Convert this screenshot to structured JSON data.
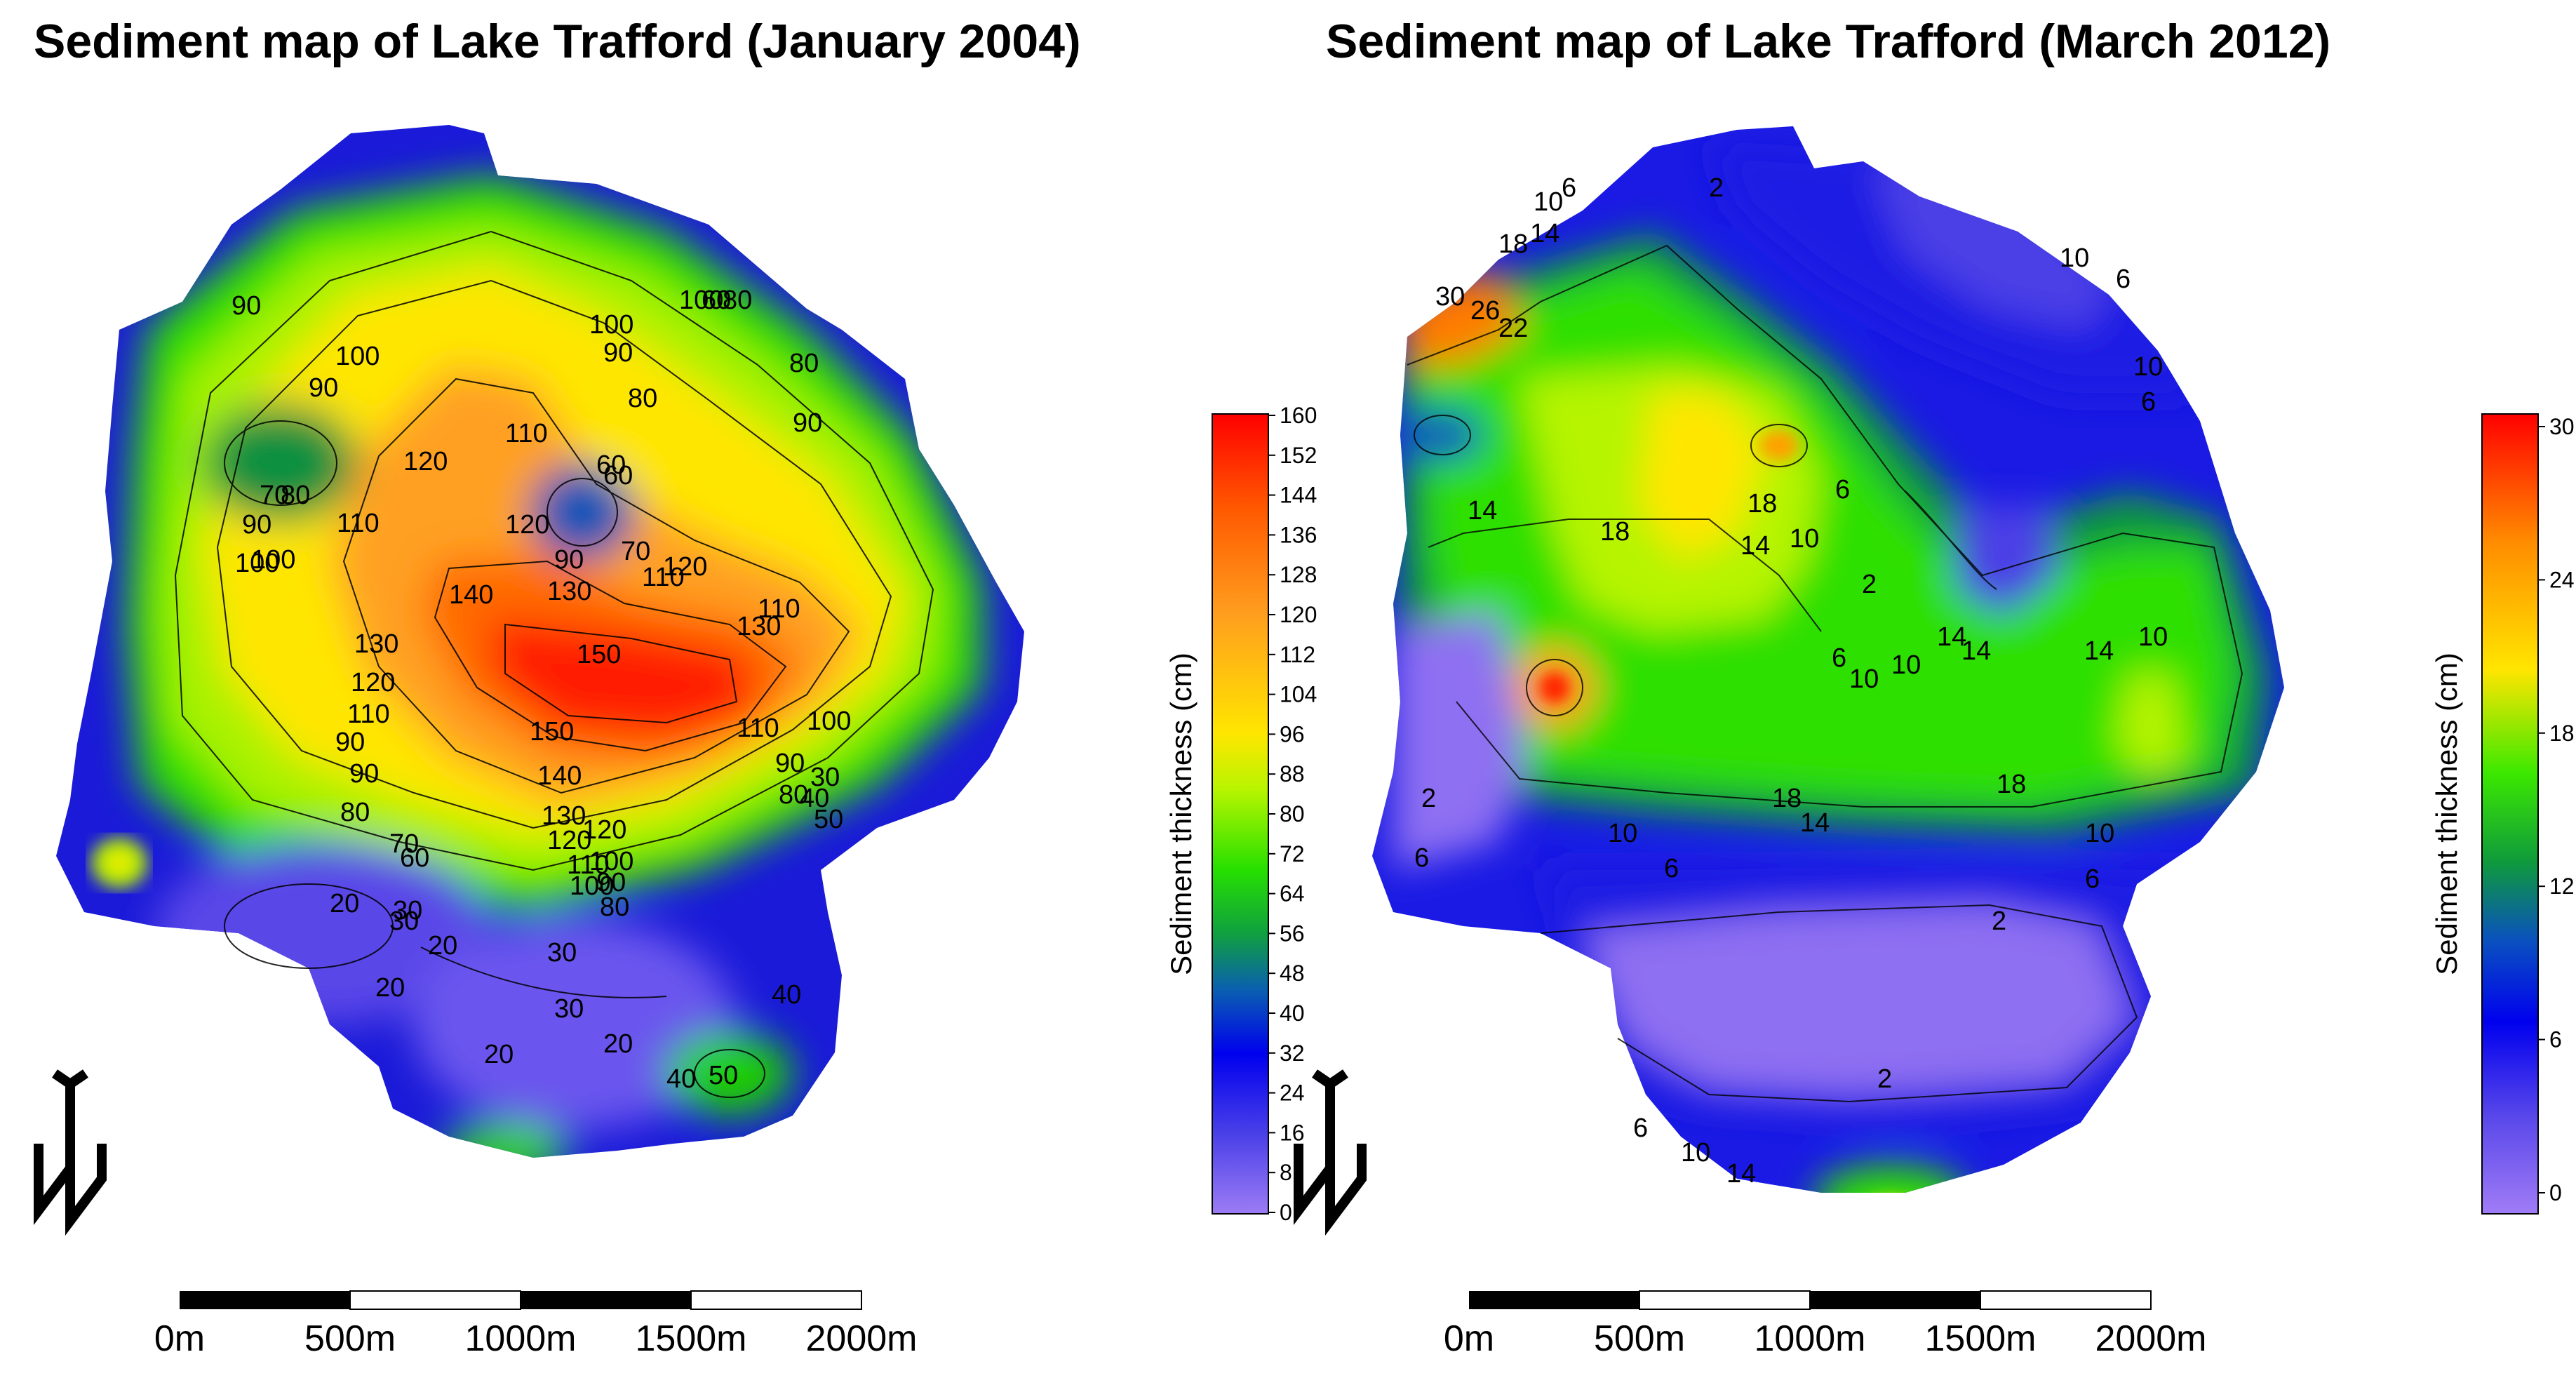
{
  "figure": {
    "left": {
      "title": "Sediment map of Lake Trafford (January 2004)",
      "colorbar": {
        "title": "Sediment thickness (cm)",
        "ticks": [
          "160",
          "152",
          "144",
          "136",
          "128",
          "120",
          "112",
          "104",
          "96",
          "88",
          "80",
          "72",
          "64",
          "56",
          "48",
          "40",
          "32",
          "24",
          "16",
          "8",
          "0"
        ]
      },
      "contour_labels": [
        "90",
        "100",
        "90",
        "70",
        "80",
        "90",
        "100",
        "110",
        "120",
        "100",
        "90",
        "110",
        "60",
        "80",
        "70",
        "90",
        "110",
        "130",
        "140",
        "120",
        "100",
        "90",
        "80",
        "60",
        "20",
        "30",
        "20",
        "30",
        "40",
        "20",
        "150",
        "150",
        "140",
        "130",
        "120",
        "110",
        "100",
        "90",
        "80",
        "90",
        "110",
        "120",
        "130",
        "120",
        "110",
        "80",
        "90",
        "100",
        "110",
        "130",
        "120",
        "100",
        "90",
        "80",
        "60",
        "70",
        "50",
        "40",
        "30",
        "30",
        "20",
        "20",
        "40",
        "50",
        "30",
        "60",
        "80",
        "100"
      ],
      "scale_bar": [
        "0m",
        "500m",
        "1000m",
        "1500m",
        "2000m"
      ],
      "north_label": "N"
    },
    "right": {
      "title": "Sediment map of Lake Trafford (March 2012)",
      "colorbar": {
        "title": "Sediment thickness (cm)",
        "ticks": [
          "30",
          "24",
          "18",
          "12",
          "6",
          "0"
        ]
      },
      "contour_labels": [
        "30",
        "26",
        "22",
        "18",
        "14",
        "10",
        "6",
        "2",
        "10",
        "6",
        "10",
        "6",
        "14",
        "18",
        "14",
        "18",
        "10",
        "6",
        "2",
        "14",
        "10",
        "6",
        "10",
        "14",
        "10",
        "18",
        "14",
        "18",
        "14",
        "2",
        "6",
        "10",
        "6",
        "10",
        "6",
        "2",
        "2",
        "6",
        "10",
        "14"
      ],
      "scale_bar": [
        "0m",
        "500m",
        "1000m",
        "1500m",
        "2000m"
      ],
      "north_label": "N"
    }
  }
}
